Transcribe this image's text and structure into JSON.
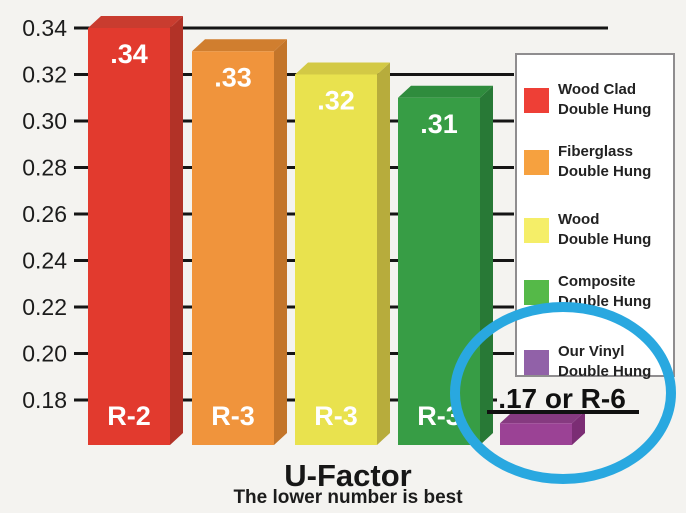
{
  "chart_data": {
    "type": "bar",
    "title": "U-Factor",
    "subtitle": "The lower number is best",
    "xlabel": "",
    "ylabel": "",
    "axis": {
      "ticks": [
        "0.34",
        "0.32",
        "0.30",
        "0.28",
        "0.26",
        "0.24",
        "0.22",
        "0.20",
        "0.18"
      ],
      "tick_values": [
        0.34,
        0.32,
        0.3,
        0.28,
        0.26,
        0.24,
        0.22,
        0.2,
        0.18
      ],
      "range": [
        0.18,
        0.34
      ],
      "grid": true
    },
    "legend_position": "right",
    "bars": [
      {
        "category": "Wood Clad Double Hung",
        "legend_line1": "Wood Clad",
        "legend_line2": "Double Hung",
        "value": 0.34,
        "value_label": ".34",
        "r_label": "R-2",
        "annotated": false,
        "highlighted": false,
        "colors": {
          "front": "#e23a2e",
          "top": "#c93c2f",
          "side": "#b23227",
          "legend": "#ee3f36"
        }
      },
      {
        "category": "Fiberglass Double Hung",
        "legend_line1": "Fiberglass",
        "legend_line2": "Double Hung",
        "value": 0.33,
        "value_label": ".33",
        "r_label": "R-3",
        "annotated": false,
        "highlighted": false,
        "colors": {
          "front": "#f0943c",
          "top": "#d07e2f",
          "side": "#c3752a",
          "legend": "#f6a13f"
        }
      },
      {
        "category": "Wood Double Hung",
        "legend_line1": "Wood",
        "legend_line2": "Double Hung",
        "value": 0.32,
        "value_label": ".32",
        "r_label": "R-3",
        "annotated": false,
        "highlighted": false,
        "colors": {
          "front": "#e9e24e",
          "top": "#d3c945",
          "side": "#b7ac3c",
          "legend": "#f5ee68"
        }
      },
      {
        "category": "Composite Double Hung",
        "legend_line1": "Composite",
        "legend_line2": "Double Hung",
        "value": 0.31,
        "value_label": ".31",
        "r_label": "R-3",
        "annotated": false,
        "highlighted": false,
        "colors": {
          "front": "#379d45",
          "top": "#2f8c3d",
          "side": "#287936",
          "legend": "#55b948"
        }
      },
      {
        "category": "Our Vinyl Double Hung",
        "legend_line1": "Our Vinyl",
        "legend_line2": "Double Hung",
        "value": 0.17,
        "value_label": ".17 or R-6",
        "r_label": null,
        "annotated": true,
        "highlighted": true,
        "colors": {
          "front": "#9b4295",
          "top": "#863a80",
          "side": "#7b2d74",
          "legend": "#9161a8"
        }
      }
    ],
    "annotation": {
      "text": ".17 or R-6",
      "underlined": true
    },
    "highlight": {
      "shape": "ellipse",
      "color": "#29a8e0"
    },
    "text_colors": {
      "axis": "#1c1c1c",
      "bar_labels": "#ffffff",
      "annotation": "#111111"
    }
  }
}
